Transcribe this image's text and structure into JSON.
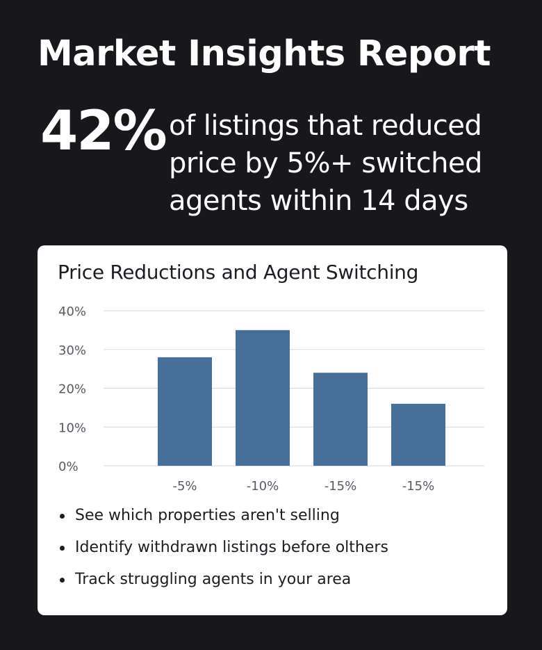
{
  "header": {
    "title": "Market Insights Report"
  },
  "highlight": {
    "stat": "42%",
    "text": "of listings that reduced price by 5%+ switched agents within 14 days"
  },
  "colors": {
    "background": "#17171c",
    "card": "#ffffff",
    "bar": "#46709a",
    "gridline": "#cfd9e4",
    "text_dark": "#1c1c22",
    "text_light": "#ffffff"
  },
  "chart_data": {
    "type": "bar",
    "title": "Price Reductions and Agent Switching",
    "xlabel": "",
    "ylabel": "",
    "categories": [
      "-5%",
      "-10%",
      "-15%",
      "-15%"
    ],
    "values": [
      28,
      35,
      24,
      16
    ],
    "ylim": [
      0,
      40
    ],
    "yticks": [
      0,
      10,
      20,
      30,
      40
    ],
    "ytick_labels": [
      "0%",
      "10%",
      "20%",
      "30%",
      "40%"
    ],
    "grid": true,
    "legend": "none"
  },
  "bullets": [
    "See which properties aren't selling",
    "Identify withdrawn listings before olthers",
    "Track struggling agents in your area"
  ]
}
